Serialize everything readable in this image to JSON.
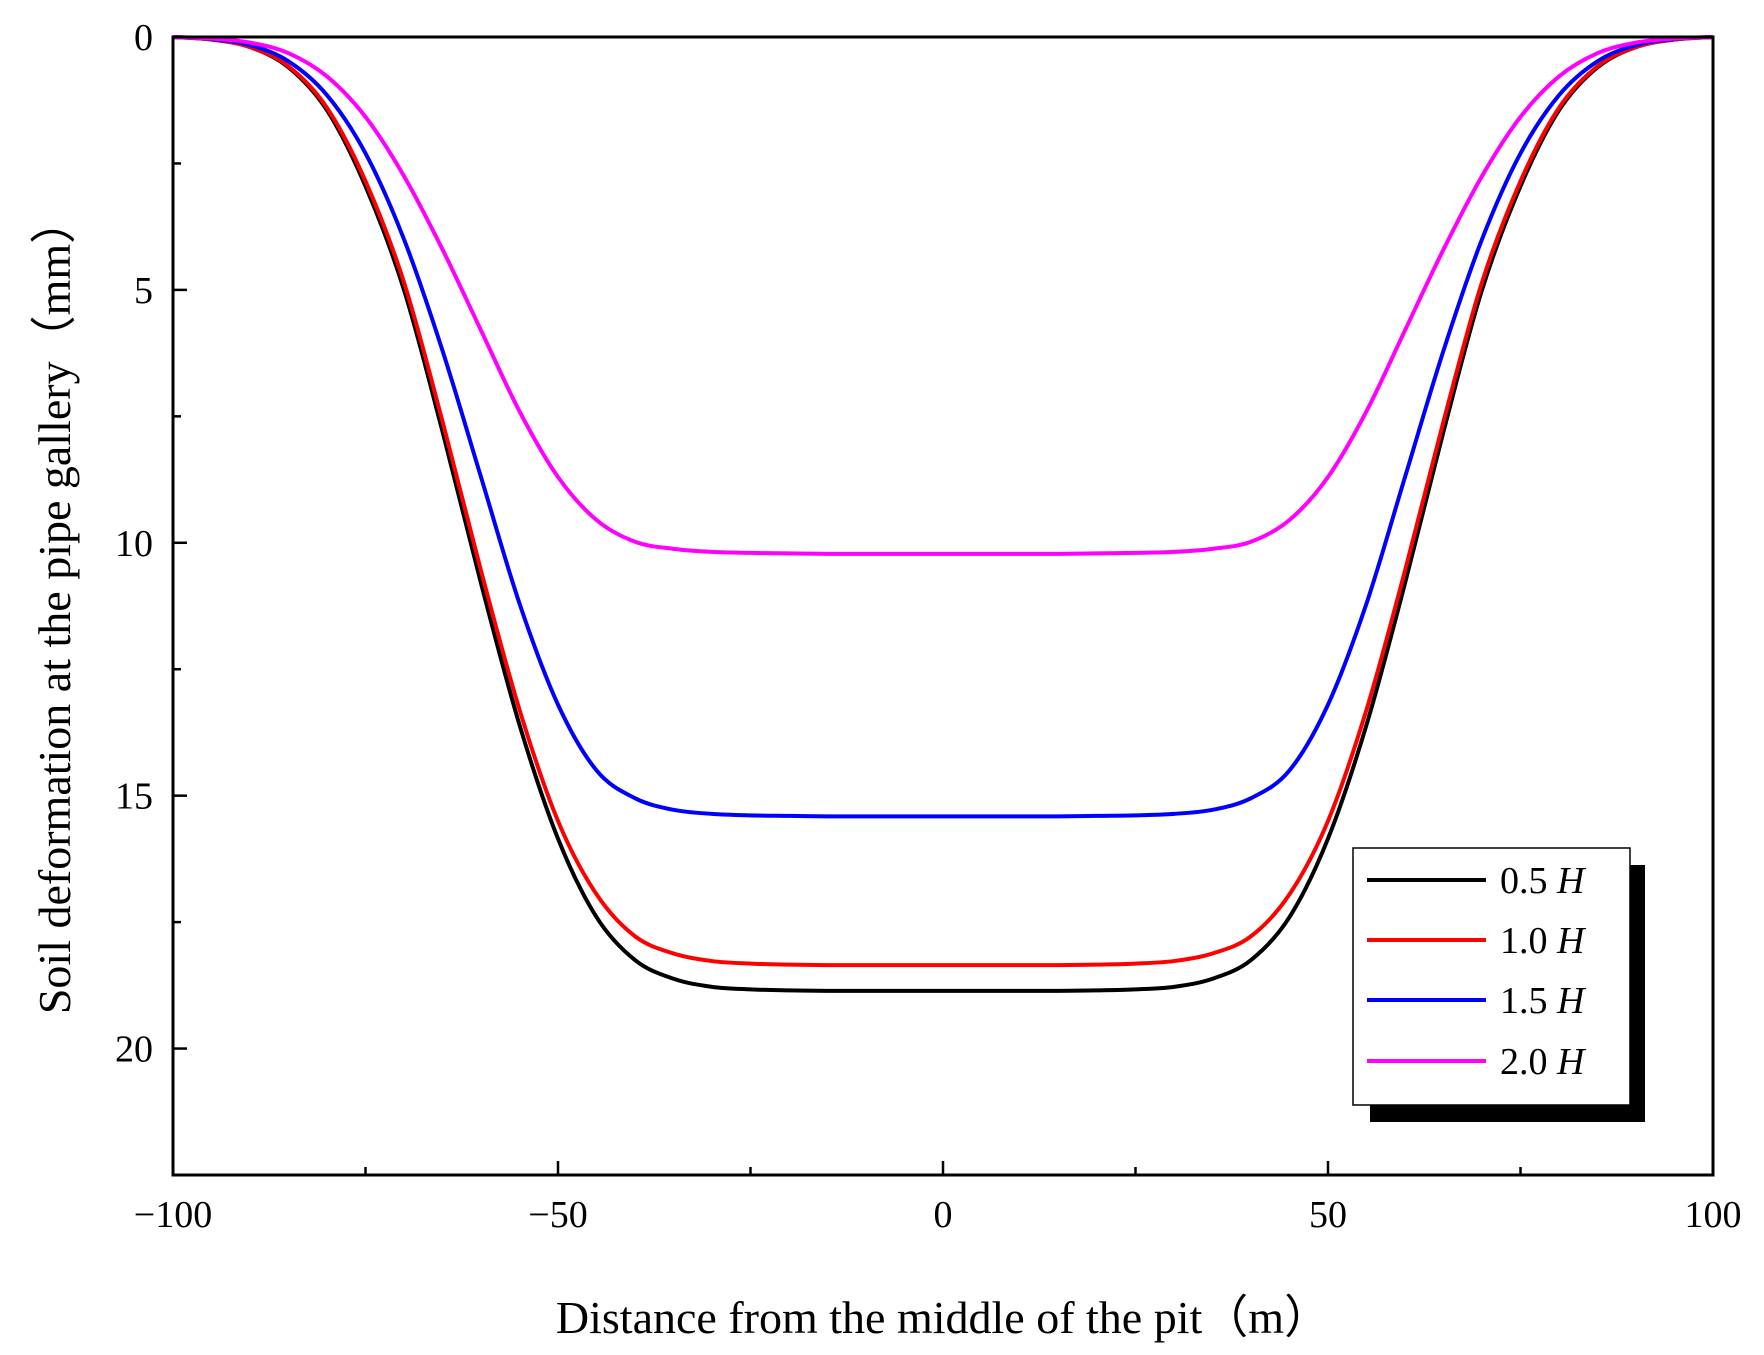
{
  "chart_data": {
    "type": "line",
    "title": "",
    "xlabel": "Distance from the middle of the pit（m）",
    "ylabel": "Soil deformation at the pipe gallery（mm）",
    "xlim": [
      -100,
      100
    ],
    "ylim": [
      0,
      22.5
    ],
    "y_inverted": true,
    "xticks": [
      -100,
      -50,
      0,
      50,
      100
    ],
    "xtick_labels": [
      "−100",
      "−50",
      "0",
      "50",
      "100"
    ],
    "x_minor_ticks": [
      -75,
      -25,
      25,
      75
    ],
    "yticks": [
      0,
      5,
      10,
      15,
      20
    ],
    "ytick_labels": [
      "0",
      "5",
      "10",
      "15",
      "20"
    ],
    "y_minor_ticks": [
      2.5,
      7.5,
      12.5,
      17.5
    ],
    "grid": false,
    "legend_position": "bottom-right",
    "x": [
      -100,
      -95,
      -90,
      -85,
      -80,
      -75,
      -70,
      -65,
      -60,
      -55,
      -50,
      -45,
      -40,
      -35,
      -30,
      -25,
      -20,
      -15,
      -10,
      -5,
      0,
      5,
      10,
      15,
      20,
      25,
      30,
      35,
      40,
      45,
      50,
      55,
      60,
      65,
      70,
      75,
      80,
      85,
      90,
      95,
      100
    ],
    "series": [
      {
        "name": "0.5",
        "name_suffix": "H",
        "color": "#000000",
        "values": [
          0,
          0.05,
          0.2,
          0.6,
          1.45,
          2.95,
          5.0,
          7.8,
          10.8,
          13.6,
          15.85,
          17.4,
          18.25,
          18.62,
          18.78,
          18.83,
          18.85,
          18.86,
          18.86,
          18.86,
          18.86,
          18.86,
          18.86,
          18.86,
          18.85,
          18.83,
          18.78,
          18.62,
          18.25,
          17.4,
          15.85,
          13.6,
          10.8,
          7.8,
          5.0,
          2.95,
          1.45,
          0.6,
          0.2,
          0.05,
          0
        ]
      },
      {
        "name": "1.0",
        "name_suffix": "H",
        "color": "#ff0000",
        "values": [
          0,
          0.05,
          0.2,
          0.58,
          1.4,
          2.85,
          4.85,
          7.6,
          10.55,
          13.3,
          15.5,
          16.95,
          17.78,
          18.12,
          18.27,
          18.32,
          18.34,
          18.35,
          18.35,
          18.35,
          18.35,
          18.35,
          18.35,
          18.35,
          18.34,
          18.32,
          18.27,
          18.12,
          17.78,
          16.95,
          15.5,
          13.3,
          10.55,
          7.6,
          4.85,
          2.85,
          1.4,
          0.58,
          0.2,
          0.05,
          0
        ]
      },
      {
        "name": "1.5",
        "name_suffix": "H",
        "color": "#0000ff",
        "values": [
          0,
          0.04,
          0.16,
          0.48,
          1.15,
          2.3,
          4.0,
          6.2,
          8.7,
          11.2,
          13.2,
          14.5,
          15.05,
          15.28,
          15.36,
          15.39,
          15.4,
          15.41,
          15.41,
          15.41,
          15.41,
          15.41,
          15.41,
          15.41,
          15.4,
          15.39,
          15.36,
          15.28,
          15.05,
          14.5,
          13.2,
          11.2,
          8.7,
          6.2,
          4.0,
          2.3,
          1.15,
          0.48,
          0.16,
          0.04,
          0
        ]
      },
      {
        "name": "2.0",
        "name_suffix": "H",
        "color": "#ff00ff",
        "values": [
          0,
          0.03,
          0.11,
          0.32,
          0.78,
          1.58,
          2.75,
          4.2,
          5.8,
          7.4,
          8.7,
          9.55,
          9.98,
          10.12,
          10.18,
          10.2,
          10.21,
          10.22,
          10.22,
          10.22,
          10.22,
          10.22,
          10.22,
          10.22,
          10.21,
          10.2,
          10.18,
          10.12,
          9.98,
          9.55,
          8.7,
          7.4,
          5.8,
          4.2,
          2.75,
          1.58,
          0.78,
          0.32,
          0.11,
          0.03,
          0
        ]
      }
    ]
  }
}
